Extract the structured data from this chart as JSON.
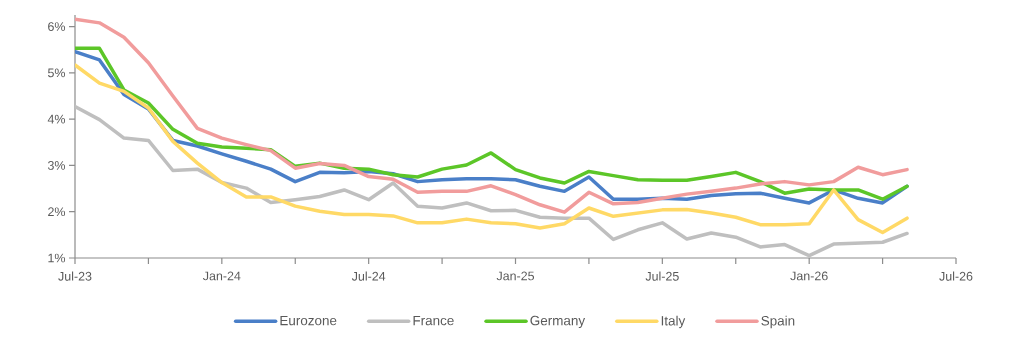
{
  "chart_data": {
    "type": "line",
    "x": [
      "2023-07",
      "2023-08",
      "2023-09",
      "2023-10",
      "2023-11",
      "2023-12",
      "2024-01",
      "2024-02",
      "2024-03",
      "2024-04",
      "2024-05",
      "2024-06",
      "2024-07",
      "2024-08",
      "2024-09",
      "2024-10",
      "2024-11",
      "2024-12",
      "2025-01",
      "2025-02",
      "2025-03",
      "2025-04",
      "2025-05",
      "2025-06",
      "2025-07",
      "2025-08",
      "2025-09",
      "2025-10",
      "2025-11",
      "2025-12",
      "2026-01",
      "2026-02",
      "2026-03",
      "2026-04",
      "2026-05"
    ],
    "series": [
      {
        "name": "Eurozone",
        "color": "#4a7fc8",
        "values": [
          5.46,
          5.28,
          4.53,
          4.22,
          3.54,
          3.42,
          3.25,
          3.09,
          2.92,
          2.65,
          2.85,
          2.84,
          2.87,
          2.82,
          2.65,
          2.69,
          2.71,
          2.71,
          2.69,
          2.55,
          2.44,
          2.75,
          2.27,
          2.27,
          2.29,
          2.27,
          2.35,
          2.39,
          2.4,
          2.29,
          2.19,
          2.47,
          2.29,
          2.19,
          2.55
        ]
      },
      {
        "name": "France",
        "color": "#bfbfbf",
        "values": [
          4.27,
          3.99,
          3.59,
          3.54,
          2.89,
          2.92,
          2.63,
          2.51,
          2.2,
          2.26,
          2.33,
          2.47,
          2.26,
          2.62,
          2.12,
          2.08,
          2.19,
          2.02,
          2.03,
          1.88,
          1.86,
          1.86,
          1.4,
          1.61,
          1.76,
          1.41,
          1.54,
          1.45,
          1.24,
          1.29,
          1.05,
          1.3,
          1.32,
          1.34,
          1.53
        ]
      },
      {
        "name": "Germany",
        "color": "#5cc628",
        "values": [
          5.53,
          5.53,
          4.63,
          4.35,
          3.78,
          3.48,
          3.4,
          3.37,
          3.34,
          2.98,
          3.05,
          2.94,
          2.92,
          2.8,
          2.75,
          2.92,
          3.01,
          3.27,
          2.91,
          2.73,
          2.62,
          2.87,
          2.78,
          2.69,
          2.68,
          2.68,
          2.76,
          2.85,
          2.65,
          2.4,
          2.49,
          2.47,
          2.47,
          2.27,
          2.55
        ]
      },
      {
        "name": "Italy",
        "color": "#ffd966",
        "values": [
          5.17,
          4.78,
          4.6,
          4.24,
          3.52,
          3.05,
          2.63,
          2.32,
          2.32,
          2.12,
          2.01,
          1.94,
          1.94,
          1.91,
          1.76,
          1.76,
          1.84,
          1.76,
          1.74,
          1.65,
          1.74,
          2.08,
          1.9,
          1.97,
          2.04,
          2.05,
          1.97,
          1.88,
          1.72,
          1.72,
          1.74,
          2.47,
          1.83,
          1.55,
          1.86
        ]
      },
      {
        "name": "Spain",
        "color": "#f19c9c",
        "values": [
          6.16,
          6.08,
          5.77,
          5.22,
          4.5,
          3.8,
          3.59,
          3.45,
          3.32,
          2.94,
          3.04,
          3.0,
          2.76,
          2.7,
          2.42,
          2.44,
          2.44,
          2.56,
          2.37,
          2.15,
          1.99,
          2.42,
          2.17,
          2.2,
          2.29,
          2.38,
          2.44,
          2.51,
          2.6,
          2.65,
          2.58,
          2.65,
          2.96,
          2.8,
          2.91
        ]
      }
    ],
    "xlim": [
      "2023-07",
      "2026-07"
    ],
    "xticks": [
      {
        "value": "2023-07",
        "label": "Jul-23"
      },
      {
        "value": "2023-10",
        "label": null
      },
      {
        "value": "2024-01",
        "label": "Jan-24"
      },
      {
        "value": "2024-04",
        "label": null
      },
      {
        "value": "2024-07",
        "label": "Jul-24"
      },
      {
        "value": "2024-10",
        "label": null
      },
      {
        "value": "2025-01",
        "label": "Jan-25"
      },
      {
        "value": "2025-04",
        "label": null
      },
      {
        "value": "2025-07",
        "label": "Jul-25"
      },
      {
        "value": "2025-10",
        "label": null
      },
      {
        "value": "2026-01",
        "label": "Jan-26"
      },
      {
        "value": "2026-04",
        "label": null
      },
      {
        "value": "2026-07",
        "label": "Jul-26"
      }
    ],
    "ylim": [
      1,
      6.25
    ],
    "yticks": [
      {
        "value": 1,
        "label": "1%"
      },
      {
        "value": 2,
        "label": "2%"
      },
      {
        "value": 3,
        "label": "3%"
      },
      {
        "value": 4,
        "label": "4%"
      },
      {
        "value": 5,
        "label": "5%"
      },
      {
        "value": 6,
        "label": "6%"
      }
    ],
    "grid": false,
    "legend": "bottom",
    "marker": "none",
    "line_style": "solid"
  }
}
